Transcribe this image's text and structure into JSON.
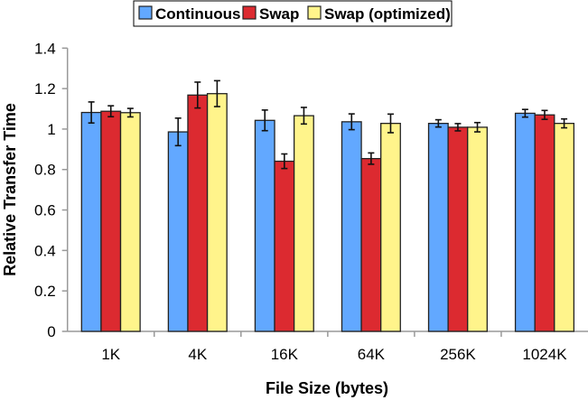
{
  "chart_data": {
    "type": "bar",
    "title": "",
    "xlabel": "File Size (bytes)",
    "ylabel": "Relative Transfer Time",
    "ylim": [
      0,
      1.4
    ],
    "yticks": [
      "0",
      "0.2",
      "0.4",
      "0.6",
      "0.8",
      "1",
      "1.2",
      "1.4"
    ],
    "grid": false,
    "legend_position": "top-center",
    "categories": [
      "1K",
      "4K",
      "16K",
      "64K",
      "256K",
      "1024K"
    ],
    "series": [
      {
        "name": "Continuous",
        "color": "#62a8ff",
        "values": [
          1.082,
          0.986,
          1.043,
          1.036,
          1.028,
          1.078
        ],
        "errors": [
          0.052,
          0.068,
          0.051,
          0.039,
          0.018,
          0.019
        ]
      },
      {
        "name": "Swap",
        "color": "#dc2a30",
        "values": [
          1.088,
          1.168,
          0.841,
          0.854,
          1.009,
          1.07
        ],
        "errors": [
          0.027,
          0.064,
          0.036,
          0.028,
          0.018,
          0.022
        ]
      },
      {
        "name": "Swap (optimized)",
        "color": "#fff48b",
        "values": [
          1.081,
          1.175,
          1.066,
          1.028,
          1.009,
          1.028
        ],
        "errors": [
          0.021,
          0.064,
          0.041,
          0.046,
          0.023,
          0.022
        ]
      }
    ]
  }
}
